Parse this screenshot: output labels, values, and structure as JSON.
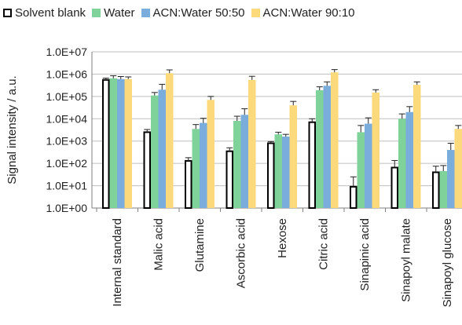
{
  "chart_data": {
    "type": "bar",
    "ylabel": "Signal intensity / a.u.",
    "yscale": "log",
    "ylim": [
      1,
      10000000
    ],
    "yticks": [
      "1.0E+00",
      "1.0E+01",
      "1.0E+02",
      "1.0E+03",
      "1.0E+04",
      "1.0E+05",
      "1.0E+06",
      "1.0E+07"
    ],
    "grid": "horizontal",
    "legend_position": "top",
    "categories": [
      "Internal standard",
      "Malic acid",
      "Glutamine",
      "Ascorbic acid",
      "Hexose",
      "Citric acid",
      "Sinapinic acid",
      "Sinapoyl malate",
      "Sinapoyl glucose"
    ],
    "series": [
      {
        "name": "Solvent blank",
        "color": "#ffffff",
        "stroke": "#000000",
        "values": [
          550000,
          2500,
          130,
          350,
          800,
          7000,
          9,
          65,
          40
        ],
        "errors": [
          110000,
          800,
          50,
          150,
          150,
          3000,
          16,
          70,
          35
        ]
      },
      {
        "name": "Water",
        "color": "#7fd39a",
        "stroke": "none",
        "values": [
          650000,
          110000,
          3500,
          8000,
          2000,
          190000,
          2500,
          10000,
          45
        ],
        "errors": [
          200000,
          40000,
          2000,
          5000,
          500,
          80000,
          2500,
          6500,
          35
        ]
      },
      {
        "name": "ACN:Water 50:50",
        "color": "#7aacdc",
        "stroke": "none",
        "values": [
          600000,
          200000,
          6500,
          15000,
          1600,
          300000,
          6000,
          20000,
          400
        ],
        "errors": [
          180000,
          150000,
          4000,
          13000,
          400,
          150000,
          5000,
          15000,
          400
        ]
      },
      {
        "name": "ACN:Water 90:10",
        "color": "#fcd97a",
        "stroke": "none",
        "values": [
          600000,
          1100000,
          70000,
          550000,
          40000,
          1200000,
          150000,
          330000,
          3500
        ],
        "errors": [
          150000,
          450000,
          30000,
          250000,
          20000,
          400000,
          50000,
          120000,
          1500
        ]
      }
    ]
  }
}
